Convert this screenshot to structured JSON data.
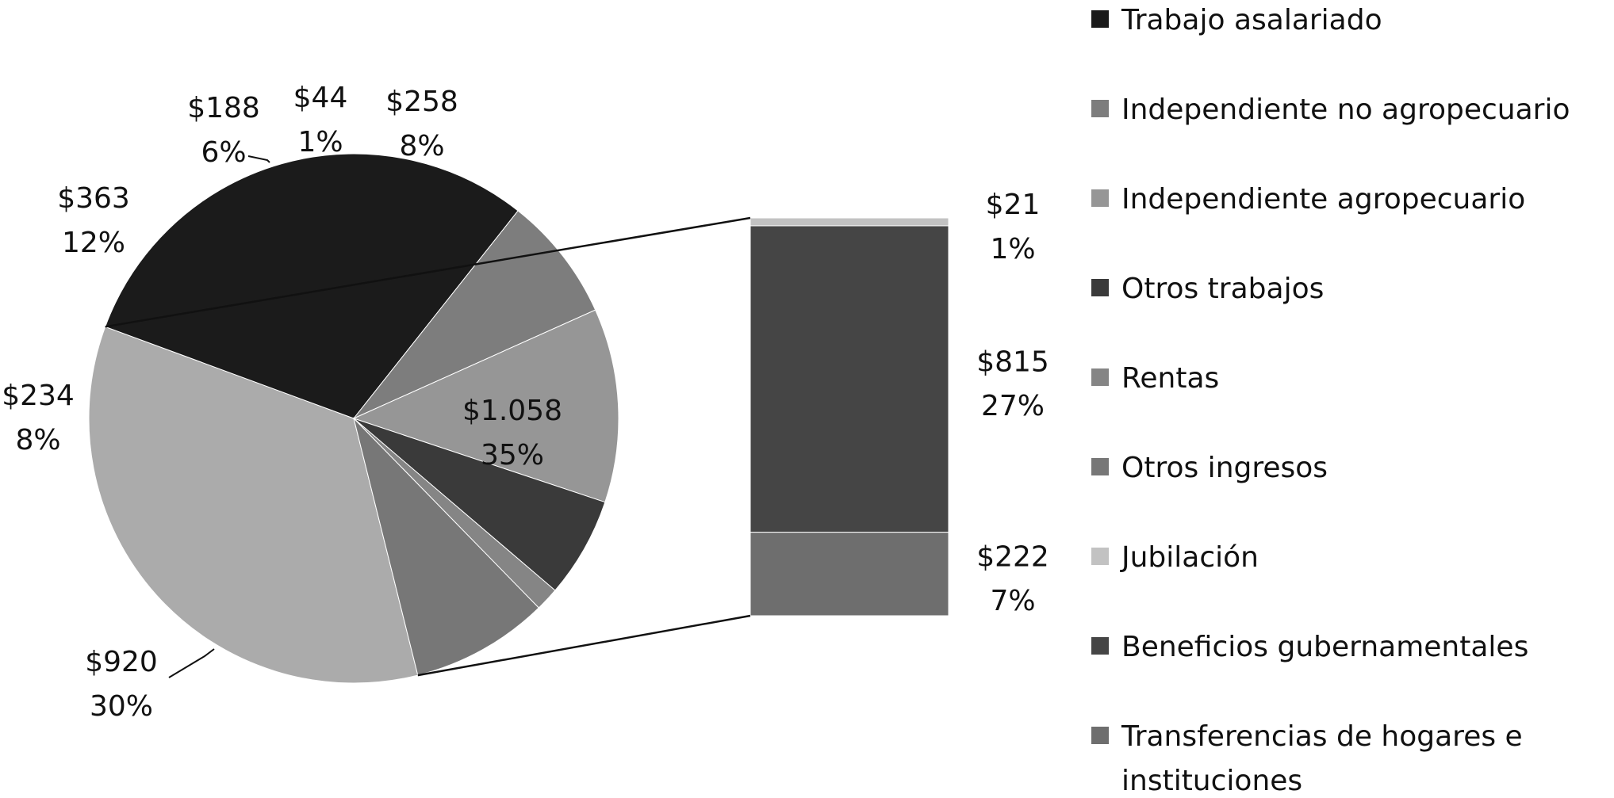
{
  "chart_data": {
    "type": "pie",
    "subtype": "bar-of-pie",
    "title": "",
    "slices": [
      {
        "label": "Trabajo asalariado",
        "value": 920,
        "value_label": "$920",
        "percent_label": "30%",
        "color": "#1b1b1b"
      },
      {
        "label": "Independiente no agropecuario",
        "value": 234,
        "value_label": "$234",
        "percent_label": "8%",
        "color": "#7d7d7d"
      },
      {
        "label": "Independiente agropecuario",
        "value": 363,
        "value_label": "$363",
        "percent_label": "12%",
        "color": "#969696"
      },
      {
        "label": "Otros trabajos",
        "value": 188,
        "value_label": "$188",
        "percent_label": "6%",
        "color": "#3a3a3a"
      },
      {
        "label": "Rentas",
        "value": 44,
        "value_label": "$44",
        "percent_label": "1%",
        "color": "#858585"
      },
      {
        "label": "Otros ingresos",
        "value": 258,
        "value_label": "$258",
        "percent_label": "8%",
        "color": "#777777"
      },
      {
        "label": "Otro (Jubilación + Beneficios gubernamentales + Transferencias de hogares e instituciones)",
        "value": 1058,
        "value_label": "$1.058",
        "percent_label": "35%",
        "color": "#ababab"
      }
    ],
    "bar_breakdown": [
      {
        "label": "Jubilación",
        "value": 21,
        "value_label": "$21",
        "percent_label": "1%",
        "color": "#c2c2c2"
      },
      {
        "label": "Beneficios gubernamentales",
        "value": 815,
        "value_label": "$815",
        "percent_label": "27%",
        "color": "#454545"
      },
      {
        "label": "Transferencias de hogares e instituciones",
        "value": 222,
        "value_label": "$222",
        "percent_label": "7%",
        "color": "#6e6e6e"
      }
    ],
    "legend_position": "right",
    "legend": [
      {
        "lines": [
          "Trabajo asalariado"
        ],
        "color": "#1b1b1b"
      },
      {
        "lines": [
          "Independiente no agropecuario"
        ],
        "color": "#7d7d7d"
      },
      {
        "lines": [
          "Independiente agropecuario"
        ],
        "color": "#969696"
      },
      {
        "lines": [
          "Otros trabajos"
        ],
        "color": "#3a3a3a"
      },
      {
        "lines": [
          "Rentas"
        ],
        "color": "#858585"
      },
      {
        "lines": [
          "Otros ingresos"
        ],
        "color": "#777777"
      },
      {
        "lines": [
          "Jubilación"
        ],
        "color": "#c2c2c2"
      },
      {
        "lines": [
          "Beneficios gubernamentales"
        ],
        "color": "#454545"
      },
      {
        "lines": [
          "Transferencias de hogares e",
          "instituciones"
        ],
        "color": "#6e6e6e"
      }
    ]
  }
}
